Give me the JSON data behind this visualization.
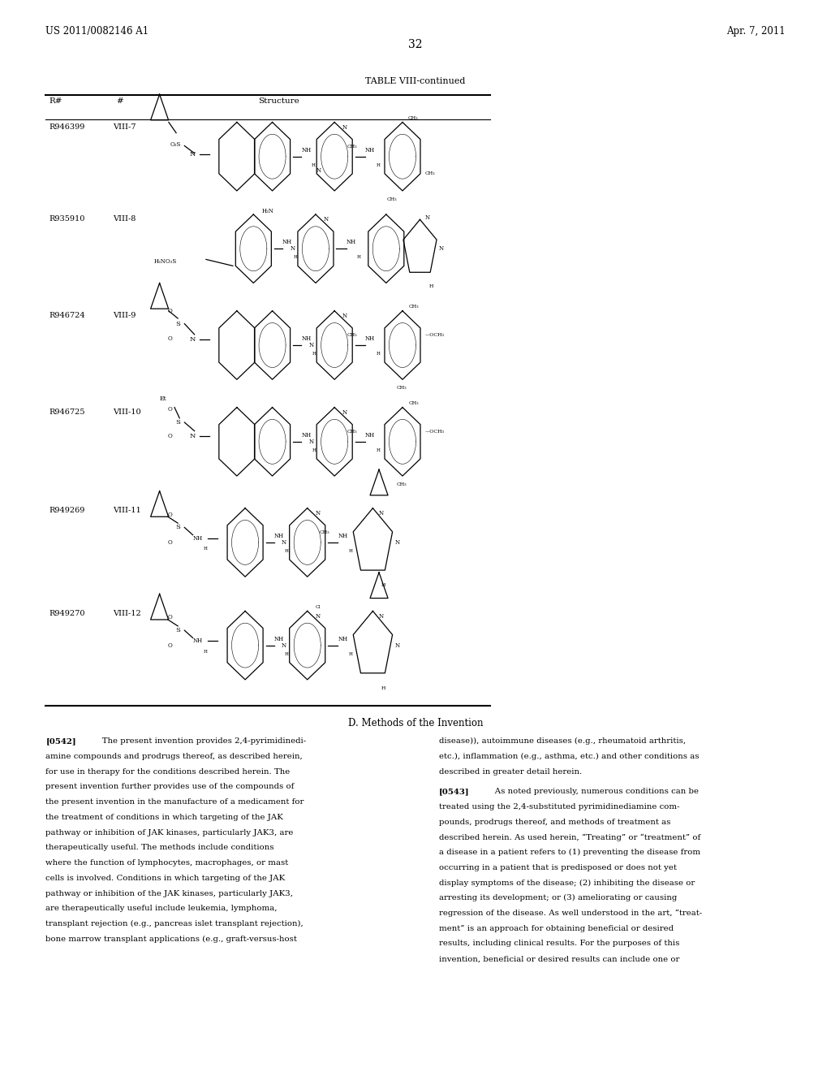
{
  "background_color": "#ffffff",
  "page_width": 10.24,
  "page_height": 13.2,
  "header_left": "US 2011/0082146 A1",
  "header_right": "Apr. 7, 2011",
  "page_number": "32",
  "table_title": "TABLE VIII-continued",
  "col_headers": [
    "R#",
    "#",
    "Structure"
  ],
  "rows": [
    {
      "r_num": "R946399",
      "num": "VIII-7"
    },
    {
      "r_num": "R935910",
      "num": "VIII-8"
    },
    {
      "r_num": "R946724",
      "num": "VIII-9"
    },
    {
      "r_num": "R946725",
      "num": "VIII-10"
    },
    {
      "r_num": "R949269",
      "num": "VIII-11"
    },
    {
      "r_num": "R949270",
      "num": "VIII-12"
    }
  ],
  "section_title": "D. Methods of the Invention",
  "para_0542_label": "[0542]",
  "para_0542_text": "   The present invention provides 2,4-pyrimidinedi-\namine compounds and prodrugs thereof, as described herein,\nfor use in therapy for the conditions described herein. The\npresent invention further provides use of the compounds of\nthe present invention in the manufacture of a medicament for\nthe treatment of conditions in which targeting of the JAK\npathway or inhibition of JAK kinases, particularly JAK3, are\ntherapeutically useful. The methods include conditions\nwhere the function of lymphocytes, macrophages, or mast\ncells is involved. Conditions in which targeting of the JAK\npathway or inhibition of the JAK kinases, particularly JAK3,\nare therapeutically useful include leukemia, lymphoma,\ntransplant rejection (e.g., pancreas islet transplant rejection),\nbone marrow transplant applications (e.g., graft-versus-host",
  "para_0543_text_right": "disease)), autoimmune diseases (e.g., rheumatoid arthritis,\netc.), inflammation (e.g., asthma, etc.) and other conditions as\ndescribed in greater detail herein.",
  "para_0543_label": "[0543]",
  "para_0543_full": "   As noted previously, numerous conditions can be\ntreated using the 2,4-substituted pyrimidinediamine com-\npounds, prodrugs thereof, and methods of treatment as\ndescribed herein. As used herein, “Treating” or “treatment” of\na disease in a patient refers to (1) preventing the disease from\noccurring in a patient that is predisposed or does not yet\ndisplay symptoms of the disease; (2) inhibiting the disease or\narresting its development; or (3) ameliorating or causing\nregression of the disease. As well understood in the art, “treat-\nment” is an approach for obtaining beneficial or desired\nresults, including clinical results. For the purposes of this\ninvention, beneficial or desired results can include one or",
  "text_color": "#000000",
  "font_size_header": 8.5,
  "font_size_body": 7.5,
  "font_size_table": 8.0,
  "font_size_page_num": 10.0
}
